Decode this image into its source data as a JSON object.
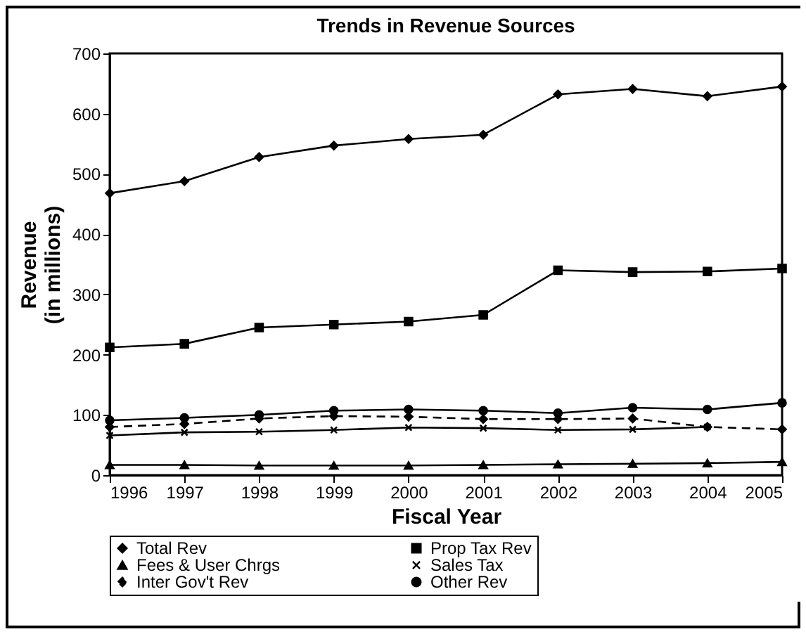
{
  "chart_data": {
    "type": "line",
    "title": "Trends in Revenue Sources",
    "xlabel": "Fiscal Year",
    "ylabel": "Revenue\n(in millions)",
    "categories": [
      "1996",
      "1997",
      "1998",
      "1999",
      "2000",
      "2001",
      "2002",
      "2003",
      "2004",
      "2005"
    ],
    "ylim": [
      0,
      700
    ],
    "yticks": [
      0,
      100,
      200,
      300,
      400,
      500,
      600,
      700
    ],
    "grid": false,
    "legend": "bottom",
    "series": [
      {
        "name": "Total Rev",
        "color": "#000000",
        "marker": "diamond",
        "line_style": "solid",
        "values": [
          468,
          488,
          528,
          547,
          558,
          565,
          632,
          641,
          629,
          645
        ]
      },
      {
        "name": "Prop Tax Rev",
        "color": "#000000",
        "marker": "square",
        "line_style": "solid",
        "values": [
          212,
          218,
          245,
          250,
          255,
          266,
          340,
          337,
          338,
          343
        ]
      },
      {
        "name": "Fees & User Chrgs",
        "color": "#000000",
        "marker": "triangle",
        "line_style": "solid",
        "values": [
          17,
          17,
          16,
          16,
          16,
          17,
          18,
          19,
          20,
          22
        ]
      },
      {
        "name": "Sales Tax",
        "color": "#000000",
        "marker": "cross",
        "line_style": "solid",
        "values": [
          66,
          71,
          72,
          75,
          79,
          78,
          75,
          76,
          80,
          null
        ]
      },
      {
        "name": "Inter Gov't Rev",
        "color": "#000000",
        "marker": "diamond",
        "line_style": "dashed",
        "values": [
          80,
          85,
          94,
          98,
          97,
          93,
          93,
          94,
          80,
          76
        ]
      },
      {
        "name": "Other Rev",
        "color": "#000000",
        "marker": "circle",
        "line_style": "solid",
        "values": [
          91,
          95,
          100,
          107,
          109,
          107,
          103,
          112,
          109,
          120
        ]
      }
    ]
  }
}
